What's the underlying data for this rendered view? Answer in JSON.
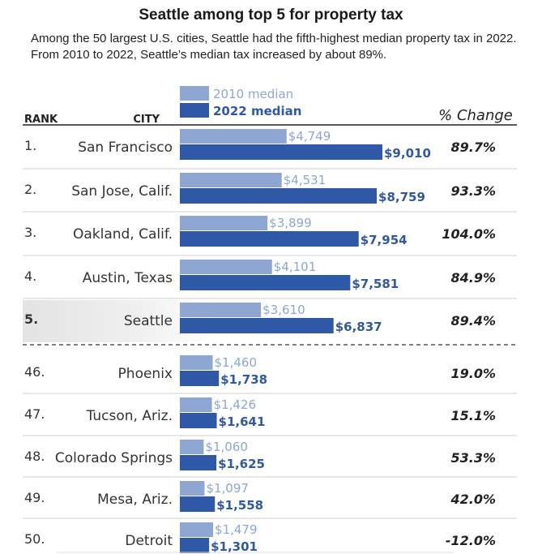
{
  "title": "Seattle among top 5 for property tax",
  "subtitle": "Among the 50 largest U.S. cities, Seattle had the fifth-highest median property tax in 2022. From 2010 to 2022, Seattle’s median tax increased by about 89%.",
  "headers": {
    "rank": "RANK",
    "city": "CITY",
    "change": "% Change"
  },
  "colors": {
    "light": "#8ea7d2",
    "dark": "#2f58a6",
    "highlight": "#e6e6e6"
  },
  "chart_data": {
    "type": "bar",
    "legend": [
      "2010 median",
      "2022 median"
    ],
    "series": [
      {
        "name": "2010 median",
        "values": [
          4749,
          4531,
          3899,
          4101,
          3610,
          1460,
          1426,
          1060,
          1097,
          1479
        ]
      },
      {
        "name": "2022 median",
        "values": [
          9010,
          8759,
          7954,
          7581,
          6837,
          1738,
          1641,
          1625,
          1558,
          1301
        ]
      }
    ],
    "rows": [
      {
        "rank": "1.",
        "city": "San Francisco",
        "v2010": 4749,
        "v2022": 9010,
        "label2010": "$4,749",
        "label2022": "$9,010",
        "change": "89.7%"
      },
      {
        "rank": "2.",
        "city": "San Jose, Calif.",
        "v2010": 4531,
        "v2022": 8759,
        "label2010": "$4,531",
        "label2022": "$8,759",
        "change": "93.3%"
      },
      {
        "rank": "3.",
        "city": "Oakland, Calif.",
        "v2010": 3899,
        "v2022": 7954,
        "label2010": "$3,899",
        "label2022": "$7,954",
        "change": "104.0%"
      },
      {
        "rank": "4.",
        "city": "Austin, Texas",
        "v2010": 4101,
        "v2022": 7581,
        "label2010": "$4,101",
        "label2022": "$7,581",
        "change": "84.9%"
      },
      {
        "rank": "5.",
        "city": "Seattle",
        "v2010": 3610,
        "v2022": 6837,
        "label2010": "$3,610",
        "label2022": "$6,837",
        "change": "89.4%",
        "highlight": true
      },
      {
        "rank": "46.",
        "city": "Phoenix",
        "v2010": 1460,
        "v2022": 1738,
        "label2010": "$1,460",
        "label2022": "$1,738",
        "change": "19.0%"
      },
      {
        "rank": "47.",
        "city": "Tucson, Ariz.",
        "v2010": 1426,
        "v2022": 1641,
        "label2010": "$1,426",
        "label2022": "$1,641",
        "change": "15.1%"
      },
      {
        "rank": "48.",
        "city": "Colorado Springs",
        "v2010": 1060,
        "v2022": 1625,
        "label2010": "$1,060",
        "label2022": "$1,625",
        "change": "53.3%"
      },
      {
        "rank": "49.",
        "city": "Mesa, Ariz.",
        "v2010": 1097,
        "v2022": 1558,
        "label2010": "$1,097",
        "label2022": "$1,558",
        "change": "42.0%"
      },
      {
        "rank": "50.",
        "city": "Detroit",
        "v2010": 1479,
        "v2022": 1301,
        "label2010": "$1,479",
        "label2022": "$1,301",
        "change": "-12.0%"
      }
    ]
  }
}
